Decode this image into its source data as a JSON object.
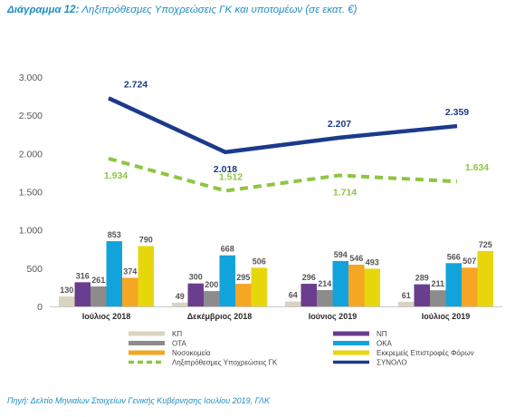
{
  "title_prefix": "Διάγραμμα 12:",
  "title_text": "Ληξιπρόθεσμες Υποχρεώσεις ΓΚ και υποτομέων (σε εκατ. €)",
  "source": "Πηγή: Δελτίο Μηνιαίων Στοιχείων Γενικής Κυβέρνησης Ιουλίου 2019, ΓΛΚ",
  "chart_data": {
    "type": "bar",
    "title": "Ληξιπρόθεσμες Υποχρεώσεις ΓΚ και υποτομέων (σε εκατ. €)",
    "categories": [
      "Ιούλιος 2018",
      "Δεκέμβριος 2018",
      "Ιούνιος 2019",
      "Ιούλιος 2019"
    ],
    "ylim": [
      0,
      3000
    ],
    "yticks": [
      0,
      500,
      1000,
      1500,
      2000,
      2500,
      3000
    ],
    "ytick_labels": [
      "0",
      "500",
      "1.000",
      "1.500",
      "2.000",
      "2.500",
      "3.000"
    ],
    "grid": false,
    "legend_position": "bottom",
    "series": [
      {
        "name": "ΚΠ",
        "kind": "bar",
        "color": "#d9d4bf",
        "values": [
          130,
          49,
          64,
          61
        ],
        "labels": [
          "130",
          "49",
          "64",
          "61"
        ]
      },
      {
        "name": "ΝΠ",
        "kind": "bar",
        "color": "#6a3d8f",
        "values": [
          316,
          300,
          296,
          289
        ],
        "labels": [
          "316",
          "300",
          "296",
          "289"
        ]
      },
      {
        "name": "ΟΤΑ",
        "kind": "bar",
        "color": "#8c8c8c",
        "values": [
          261,
          200,
          214,
          211
        ],
        "labels": [
          "261",
          "200",
          "214",
          "211"
        ]
      },
      {
        "name": "ΟΚΑ",
        "kind": "bar",
        "color": "#12a3dd",
        "values": [
          853,
          668,
          594,
          566
        ],
        "labels": [
          "853",
          "668",
          "594",
          "566"
        ]
      },
      {
        "name": "Νοσοκομεία",
        "kind": "bar",
        "color": "#f5a623",
        "values": [
          374,
          295,
          546,
          507
        ],
        "labels": [
          "374",
          "295",
          "546",
          "507"
        ]
      },
      {
        "name": "Εκκρεμείς Επιστροφές Φόρων",
        "kind": "bar",
        "color": "#e8d60c",
        "values": [
          790,
          506,
          493,
          725
        ],
        "labels": [
          "790",
          "506",
          "493",
          "725"
        ]
      },
      {
        "name": "Ληξιπρόθεσμες Υποχρεώσεις ΓΚ",
        "kind": "line",
        "dashed": true,
        "color": "#8dc63f",
        "values": [
          1934,
          1512,
          1714,
          1634
        ],
        "labels": [
          "1.934",
          "1.512",
          "1.714",
          "1.634"
        ]
      },
      {
        "name": "ΣΥΝΟΛΟ",
        "kind": "line",
        "dashed": false,
        "color": "#1c3a8c",
        "values": [
          2724,
          2018,
          2207,
          2359
        ],
        "labels": [
          "2.724",
          "2.018",
          "2.207",
          "2.359"
        ]
      }
    ]
  }
}
